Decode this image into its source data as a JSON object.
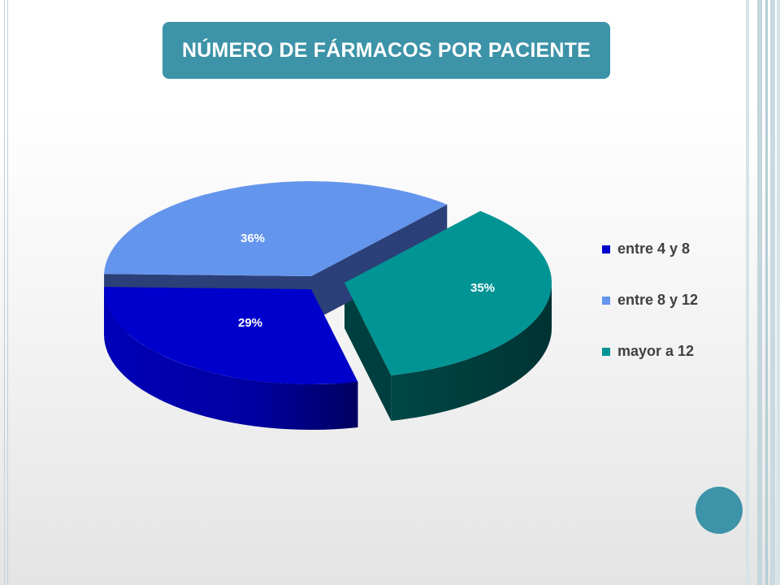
{
  "slide": {
    "title": "NÚMERO DE FÁRMACOS POR PACIENTE",
    "accent_color": "#3d93a8"
  },
  "chart_data": {
    "type": "pie",
    "title": "NÚMERO DE FÁRMACOS POR PACIENTE",
    "style": "3d-exploded",
    "legend_position": "right",
    "slices": [
      {
        "label": "entre 4 y 8",
        "value": 29,
        "display": "29%",
        "color": "#0000cc",
        "side_color": "#00007a"
      },
      {
        "label": "entre 8 y 12",
        "value": 36,
        "display": "36%",
        "color": "#6495ed",
        "side_color": "#2b3f78"
      },
      {
        "label": "mayor a 12",
        "value": 35,
        "display": "35%",
        "color": "#009494",
        "side_color": "#003f3f"
      }
    ]
  }
}
